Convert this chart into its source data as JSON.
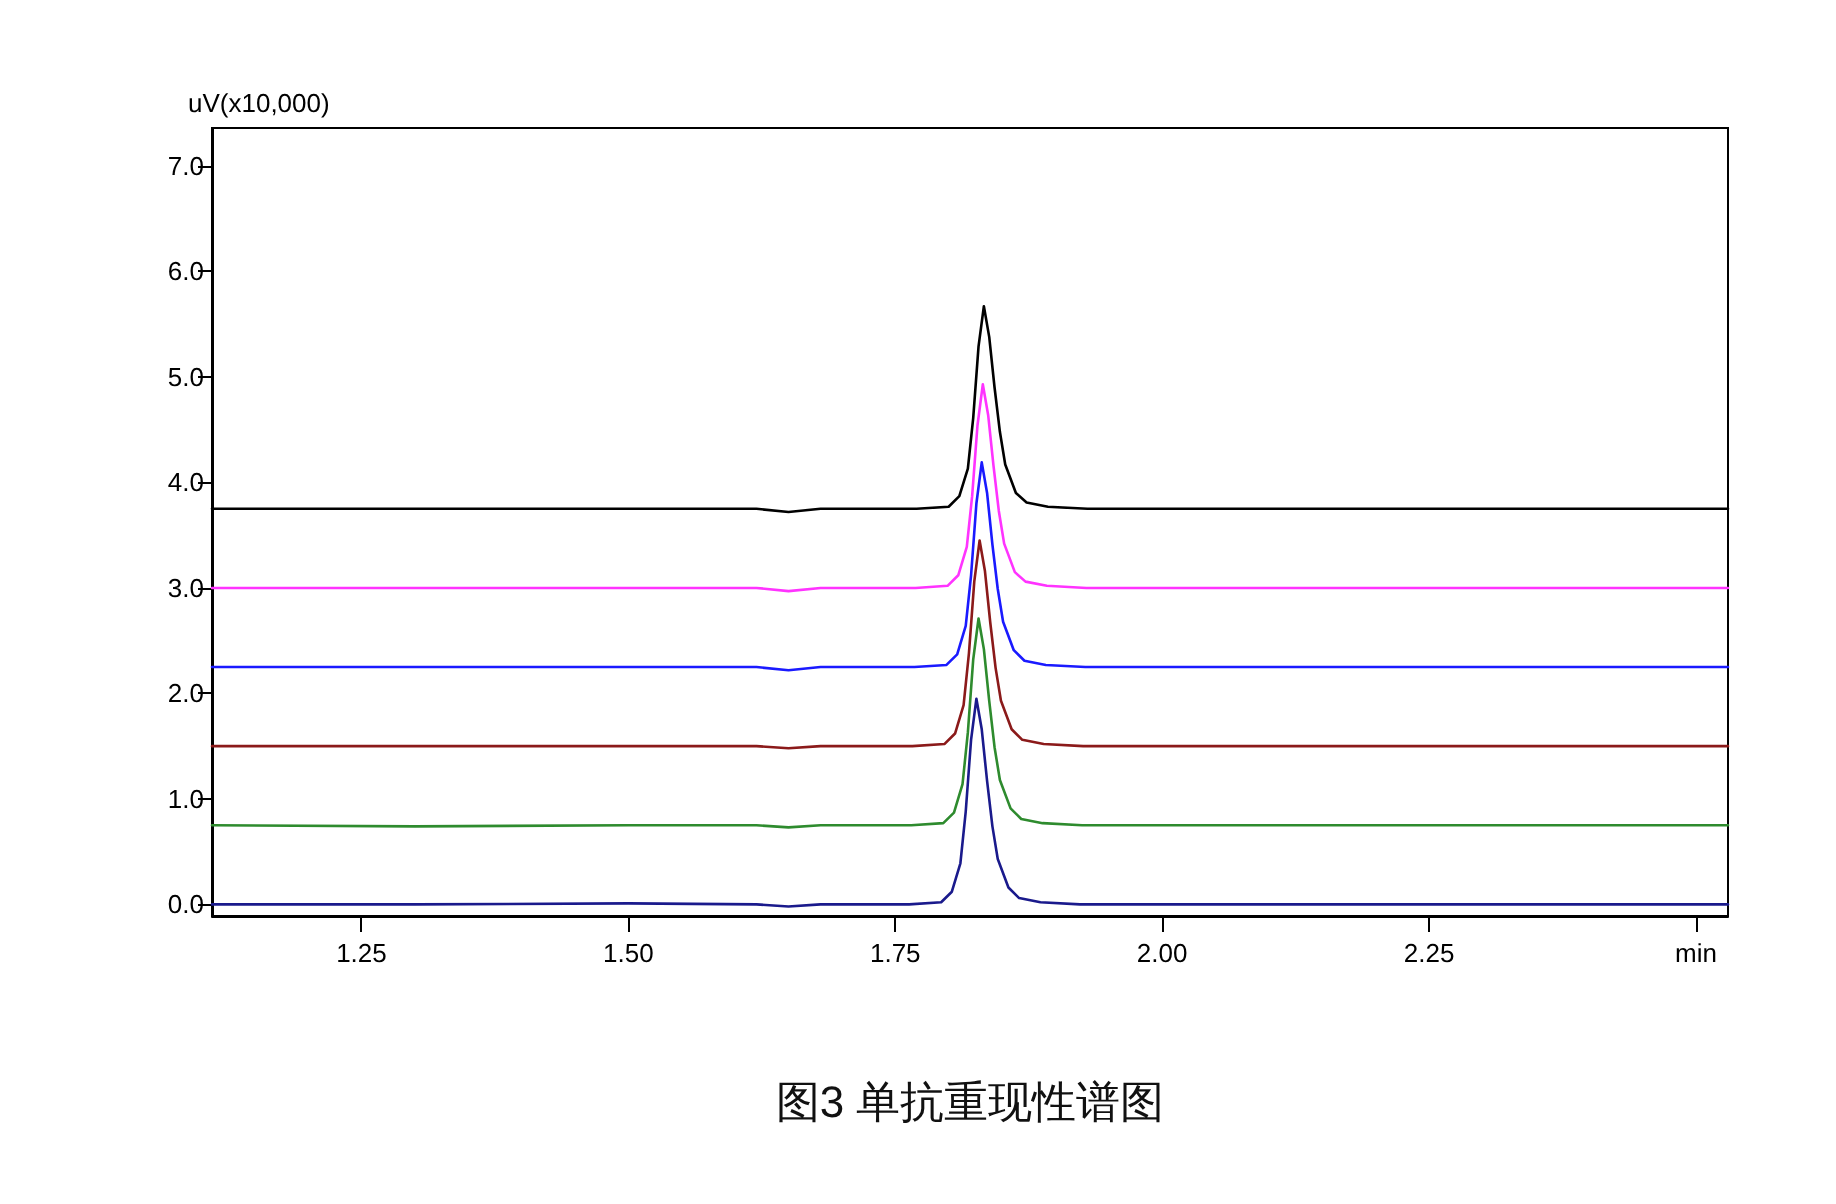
{
  "chart_data": {
    "type": "line",
    "title": "图3 单抗重现性谱图",
    "ylabel": "uV(x10,000)",
    "xlim": [
      1.11,
      2.53
    ],
    "ylim": [
      -0.11,
      7.36
    ],
    "xticks": [
      1.25,
      {
        "value": 1.5,
        "label": "1.50"
      },
      1.75,
      {
        "value": 2,
        "label": "2.00"
      },
      2.25,
      {
        "value": 2.5,
        "label": "min"
      }
    ],
    "yticks": [
      {
        "value": 0,
        "label": "0.0"
      },
      {
        "value": 1,
        "label": "1.0"
      },
      {
        "value": 2,
        "label": "2.0"
      },
      {
        "value": 3,
        "label": "3.0"
      },
      {
        "value": 4,
        "label": "4.0"
      },
      {
        "value": 5,
        "label": "5.0"
      },
      {
        "value": 6,
        "label": "6.0"
      },
      {
        "value": 7,
        "label": "7.0"
      }
    ],
    "marker": "none",
    "line_style": "solid",
    "series": [
      {
        "color": "#000000",
        "x": [
          1.11,
          1.3,
          1.5,
          1.62,
          1.65,
          1.68,
          1.77,
          1.8,
          1.81,
          1.818,
          1.823,
          1.828,
          1.833,
          1.838,
          1.843,
          1.848,
          1.853,
          1.863,
          1.873,
          1.893,
          1.93,
          2.1,
          2.3,
          2.53
        ],
        "values": [
          3.75,
          3.75,
          3.75,
          3.75,
          3.72,
          3.75,
          3.75,
          3.77,
          3.87,
          4.13,
          4.61,
          5.29,
          5.67,
          5.38,
          4.9,
          4.48,
          4.17,
          3.9,
          3.81,
          3.77,
          3.75,
          3.75,
          3.75,
          3.75
        ]
      },
      {
        "color": "#ff33ff",
        "x": [
          1.11,
          1.3,
          1.5,
          1.62,
          1.65,
          1.68,
          1.769,
          1.799,
          1.809,
          1.817,
          1.822,
          1.827,
          1.832,
          1.837,
          1.842,
          1.847,
          1.852,
          1.862,
          1.872,
          1.892,
          1.929,
          2.1,
          2.3,
          2.53
        ],
        "values": [
          3,
          3,
          3,
          3,
          2.97,
          3,
          3,
          3.02,
          3.12,
          3.39,
          3.87,
          4.54,
          4.93,
          4.64,
          4.16,
          3.73,
          3.42,
          3.15,
          3.06,
          3.02,
          3,
          3,
          3,
          3
        ]
      },
      {
        "color": "#1a1aff",
        "x": [
          1.11,
          1.3,
          1.5,
          1.62,
          1.65,
          1.68,
          1.768,
          1.798,
          1.808,
          1.816,
          1.821,
          1.826,
          1.831,
          1.836,
          1.841,
          1.846,
          1.851,
          1.861,
          1.871,
          1.891,
          1.928,
          2.1,
          2.3,
          2.53
        ],
        "values": [
          2.25,
          2.25,
          2.25,
          2.25,
          2.22,
          2.25,
          2.25,
          2.27,
          2.37,
          2.64,
          3.12,
          3.8,
          4.19,
          3.9,
          3.41,
          2.99,
          2.68,
          2.41,
          2.31,
          2.27,
          2.25,
          2.25,
          2.25,
          2.25
        ]
      },
      {
        "color": "#8b1a1a",
        "x": [
          1.11,
          1.3,
          1.5,
          1.62,
          1.65,
          1.68,
          1.766,
          1.796,
          1.806,
          1.814,
          1.819,
          1.824,
          1.829,
          1.834,
          1.839,
          1.844,
          1.849,
          1.859,
          1.869,
          1.889,
          1.926,
          2.1,
          2.3,
          2.53
        ],
        "values": [
          1.5,
          1.5,
          1.5,
          1.5,
          1.48,
          1.5,
          1.5,
          1.52,
          1.62,
          1.89,
          2.38,
          3.06,
          3.45,
          3.16,
          2.67,
          2.24,
          1.93,
          1.66,
          1.56,
          1.52,
          1.5,
          1.5,
          1.5,
          1.5
        ]
      },
      {
        "color": "#2e8b2e",
        "x": [
          1.11,
          1.3,
          1.5,
          1.62,
          1.65,
          1.68,
          1.765,
          1.795,
          1.805,
          1.813,
          1.818,
          1.823,
          1.828,
          1.833,
          1.838,
          1.843,
          1.848,
          1.858,
          1.868,
          1.888,
          1.925,
          2.1,
          2.3,
          2.53
        ],
        "values": [
          0.75,
          0.74,
          0.75,
          0.75,
          0.73,
          0.75,
          0.75,
          0.77,
          0.87,
          1.14,
          1.63,
          2.32,
          2.71,
          2.42,
          1.93,
          1.49,
          1.18,
          0.91,
          0.81,
          0.77,
          0.75,
          0.75,
          0.75,
          0.75
        ]
      },
      {
        "color": "#1a1a8c",
        "x": [
          1.11,
          1.3,
          1.5,
          1.62,
          1.65,
          1.68,
          1.763,
          1.793,
          1.803,
          1.811,
          1.816,
          1.821,
          1.826,
          1.831,
          1.836,
          1.841,
          1.846,
          1.856,
          1.866,
          1.886,
          1.923,
          2.1,
          2.3,
          2.53
        ],
        "values": [
          0,
          0,
          0.01,
          0,
          -0.02,
          0,
          0,
          0.02,
          0.12,
          0.39,
          0.88,
          1.56,
          1.95,
          1.66,
          1.17,
          0.74,
          0.43,
          0.16,
          0.06,
          0.02,
          0,
          0,
          0,
          0
        ]
      }
    ]
  }
}
